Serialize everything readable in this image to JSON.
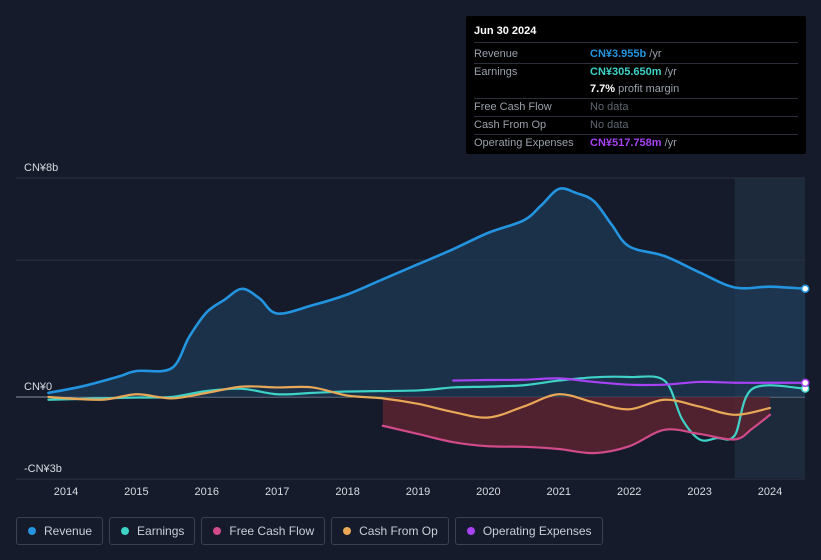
{
  "tooltip": {
    "date": "Jun 30 2024",
    "rows": [
      {
        "label": "Revenue",
        "value": "CN¥3.955b",
        "unit": "/yr",
        "color": "#2394df"
      },
      {
        "label": "Earnings",
        "value": "CN¥305.650m",
        "unit": "/yr",
        "color": "#3fd2c7"
      },
      {
        "label": "",
        "value": "7.7%",
        "unit": "profit margin",
        "color": "#ffffff"
      },
      {
        "label": "Free Cash Flow",
        "value": "No data",
        "unit": "",
        "color": ""
      },
      {
        "label": "Cash From Op",
        "value": "No data",
        "unit": "",
        "color": ""
      },
      {
        "label": "Operating Expenses",
        "value": "CN¥517.758m",
        "unit": "/yr",
        "color": "#a742f5"
      }
    ]
  },
  "legend": [
    {
      "label": "Revenue",
      "color": "#2394df"
    },
    {
      "label": "Earnings",
      "color": "#3fd2c7"
    },
    {
      "label": "Free Cash Flow",
      "color": "#d14b8a"
    },
    {
      "label": "Cash From Op",
      "color": "#e8a857"
    },
    {
      "label": "Operating Expenses",
      "color": "#a742f5"
    }
  ],
  "chart_data": {
    "type": "line",
    "title": "",
    "units": "CN¥ billions",
    "y_tick_labels": [
      "CN¥8b",
      "CN¥0",
      "-CN¥3b"
    ],
    "y_ticks": [
      8,
      0,
      -3
    ],
    "ylim": [
      -3,
      8
    ],
    "xlim": [
      2013.6,
      2024.5
    ],
    "x_tick_labels": [
      "2014",
      "2015",
      "2016",
      "2017",
      "2018",
      "2019",
      "2020",
      "2021",
      "2022",
      "2023",
      "2024"
    ],
    "x_ticks": [
      2014,
      2015,
      2016,
      2017,
      2018,
      2019,
      2020,
      2021,
      2022,
      2023,
      2024
    ],
    "highlight_start": 2023.5,
    "series": [
      {
        "name": "Revenue",
        "color": "#2394df",
        "fill": true,
        "end_marker": true,
        "points": [
          [
            2013.75,
            0.15
          ],
          [
            2014.25,
            0.4
          ],
          [
            2014.75,
            0.75
          ],
          [
            2015.0,
            0.95
          ],
          [
            2015.5,
            1.05
          ],
          [
            2015.75,
            2.2
          ],
          [
            2016.0,
            3.1
          ],
          [
            2016.25,
            3.55
          ],
          [
            2016.5,
            3.95
          ],
          [
            2016.75,
            3.6
          ],
          [
            2017.0,
            3.05
          ],
          [
            2017.5,
            3.35
          ],
          [
            2018.0,
            3.75
          ],
          [
            2018.5,
            4.3
          ],
          [
            2019.0,
            4.85
          ],
          [
            2019.5,
            5.4
          ],
          [
            2020.0,
            6.0
          ],
          [
            2020.5,
            6.45
          ],
          [
            2020.75,
            7.0
          ],
          [
            2021.0,
            7.6
          ],
          [
            2021.25,
            7.45
          ],
          [
            2021.5,
            7.15
          ],
          [
            2021.75,
            6.3
          ],
          [
            2022.0,
            5.5
          ],
          [
            2022.5,
            5.15
          ],
          [
            2023.0,
            4.55
          ],
          [
            2023.5,
            4.0
          ],
          [
            2024.0,
            4.03
          ],
          [
            2024.5,
            3.955
          ]
        ]
      },
      {
        "name": "Earnings",
        "color": "#3fd2c7",
        "fill": false,
        "end_marker": true,
        "points": [
          [
            2013.75,
            -0.1
          ],
          [
            2014.5,
            -0.05
          ],
          [
            2015.0,
            -0.02
          ],
          [
            2015.5,
            0.0
          ],
          [
            2016.0,
            0.22
          ],
          [
            2016.5,
            0.3
          ],
          [
            2017.0,
            0.1
          ],
          [
            2017.5,
            0.15
          ],
          [
            2018.0,
            0.2
          ],
          [
            2019.0,
            0.24
          ],
          [
            2019.5,
            0.35
          ],
          [
            2020.0,
            0.38
          ],
          [
            2020.5,
            0.43
          ],
          [
            2021.0,
            0.6
          ],
          [
            2021.5,
            0.72
          ],
          [
            2022.0,
            0.73
          ],
          [
            2022.5,
            0.6
          ],
          [
            2022.75,
            -0.8
          ],
          [
            2023.0,
            -1.55
          ],
          [
            2023.25,
            -1.5
          ],
          [
            2023.5,
            -1.4
          ],
          [
            2023.75,
            0.3
          ],
          [
            2024.5,
            0.306
          ]
        ]
      },
      {
        "name": "Free Cash Flow",
        "color": "#d14b8a",
        "fill": true,
        "end_marker": false,
        "points": [
          [
            2018.5,
            -1.05
          ],
          [
            2019.0,
            -1.35
          ],
          [
            2019.5,
            -1.65
          ],
          [
            2020.0,
            -1.8
          ],
          [
            2020.5,
            -1.82
          ],
          [
            2021.0,
            -1.9
          ],
          [
            2021.5,
            -2.05
          ],
          [
            2022.0,
            -1.8
          ],
          [
            2022.5,
            -1.2
          ],
          [
            2023.0,
            -1.35
          ],
          [
            2023.5,
            -1.55
          ],
          [
            2023.75,
            -1.15
          ],
          [
            2024.0,
            -0.65
          ]
        ]
      },
      {
        "name": "Cash From Op",
        "color": "#e8a857",
        "fill": false,
        "end_marker": false,
        "points": [
          [
            2013.75,
            0.0
          ],
          [
            2014.5,
            -0.1
          ],
          [
            2015.0,
            0.1
          ],
          [
            2015.5,
            -0.05
          ],
          [
            2016.0,
            0.15
          ],
          [
            2016.5,
            0.38
          ],
          [
            2017.0,
            0.35
          ],
          [
            2017.5,
            0.35
          ],
          [
            2018.0,
            0.05
          ],
          [
            2018.5,
            -0.05
          ],
          [
            2019.0,
            -0.25
          ],
          [
            2019.5,
            -0.55
          ],
          [
            2020.0,
            -0.75
          ],
          [
            2020.5,
            -0.35
          ],
          [
            2021.0,
            0.1
          ],
          [
            2021.5,
            -0.2
          ],
          [
            2022.0,
            -0.45
          ],
          [
            2022.5,
            -0.1
          ],
          [
            2023.0,
            -0.35
          ],
          [
            2023.5,
            -0.65
          ],
          [
            2024.0,
            -0.4
          ]
        ]
      },
      {
        "name": "Operating Expenses",
        "color": "#a742f5",
        "fill": false,
        "end_marker": true,
        "points": [
          [
            2019.5,
            0.6
          ],
          [
            2020.0,
            0.62
          ],
          [
            2020.5,
            0.63
          ],
          [
            2021.0,
            0.68
          ],
          [
            2021.5,
            0.55
          ],
          [
            2022.0,
            0.45
          ],
          [
            2022.5,
            0.45
          ],
          [
            2023.0,
            0.55
          ],
          [
            2023.5,
            0.52
          ],
          [
            2024.0,
            0.52
          ],
          [
            2024.5,
            0.518
          ]
        ]
      }
    ]
  }
}
